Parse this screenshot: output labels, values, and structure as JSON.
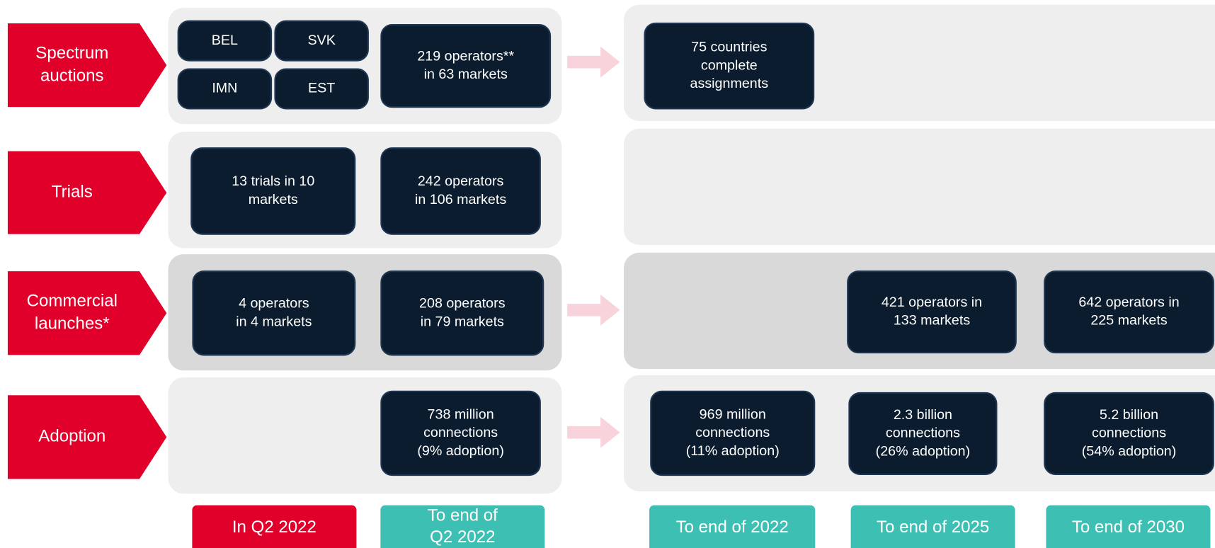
{
  "rows": [
    {
      "label": [
        "Spectrum",
        "auctions"
      ],
      "cells": [
        {
          "lines": [
            "BEL"
          ]
        },
        {
          "lines": [
            "SVK"
          ]
        },
        {
          "lines": [
            "IMN"
          ]
        },
        {
          "lines": [
            "EST"
          ]
        },
        {
          "lines": [
            "219 operators**",
            "in 63 markets"
          ]
        },
        {
          "lines": [
            "75 countries",
            "complete",
            "assignments"
          ]
        }
      ]
    },
    {
      "label": [
        "Trials"
      ],
      "cells": [
        {
          "lines": [
            "13 trials in 10",
            "markets"
          ]
        },
        {
          "lines": [
            "242 operators",
            "in 106 markets"
          ]
        }
      ]
    },
    {
      "label": [
        "Commercial",
        "launches*"
      ],
      "cells": [
        {
          "lines": [
            "4 operators",
            "in 4 markets"
          ]
        },
        {
          "lines": [
            "208 operators",
            "in 79 markets"
          ]
        },
        {
          "lines": [
            "421 operators in",
            "133 markets"
          ]
        },
        {
          "lines": [
            "642 operators in",
            "225 markets"
          ]
        }
      ]
    },
    {
      "label": [
        "Adoption"
      ],
      "cells": [
        {
          "lines": [
            "738 million",
            "connections",
            "(9% adoption)"
          ]
        },
        {
          "lines": [
            "969 million",
            "connections",
            "(11% adoption)"
          ]
        },
        {
          "lines": [
            "2.3 billion",
            "connections",
            "(26% adoption)"
          ]
        },
        {
          "lines": [
            "5.2 billion",
            "connections",
            "(54% adoption)"
          ]
        }
      ]
    }
  ],
  "columns": [
    {
      "lines": [
        "In Q2 2022"
      ]
    },
    {
      "lines": [
        "To end of",
        "Q2 2022"
      ]
    },
    {
      "lines": [
        "To end of 2022"
      ]
    },
    {
      "lines": [
        "To end of 2025"
      ]
    },
    {
      "lines": [
        "To end of 2030"
      ]
    }
  ]
}
